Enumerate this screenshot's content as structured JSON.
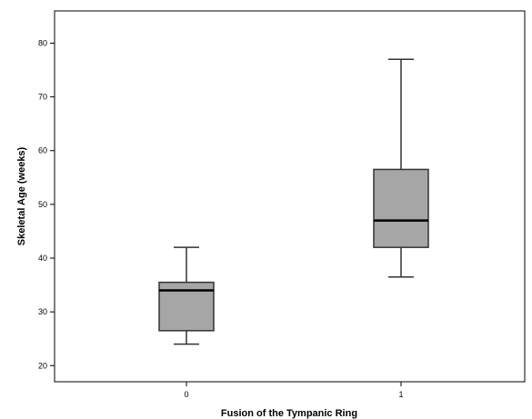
{
  "chart_data": {
    "type": "box",
    "title": "",
    "xlabel": "Fusion of the Tympanic Ring",
    "ylabel": "Skeletal Age (weeks)",
    "categories": [
      "0",
      "1"
    ],
    "ylim": [
      17,
      86
    ],
    "yticks": [
      20,
      30,
      40,
      50,
      60,
      70,
      80
    ],
    "grid": false,
    "boxes": [
      {
        "category": "0",
        "min": 24,
        "q1": 26.5,
        "median": 34,
        "q3": 35.5,
        "max": 42
      },
      {
        "category": "1",
        "min": 36.5,
        "q1": 42,
        "median": 47,
        "q3": 56.5,
        "max": 77
      }
    ],
    "colors": {
      "box_fill": "#a6a6a6",
      "stroke": "#333333",
      "median": "#000000"
    }
  }
}
